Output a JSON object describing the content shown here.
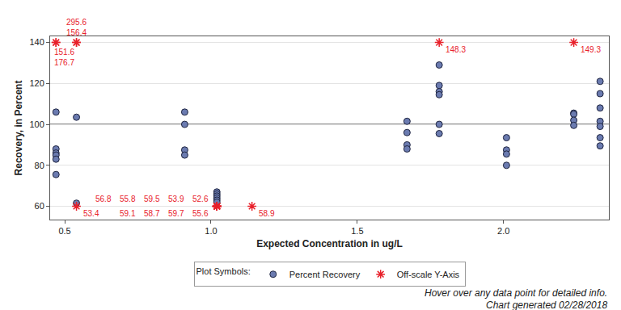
{
  "chart_data": {
    "type": "scatter",
    "x_label": "Expected Concentration in ug/L",
    "y_label": "Recovery, in Percent",
    "xlim": [
      0.45,
      2.36
    ],
    "xticks": [
      0.5,
      {
        "value": 1,
        "label": "1.0"
      },
      1.5,
      {
        "value": 2,
        "label": "2.0"
      }
    ],
    "ylim": [
      53.5,
      143
    ],
    "yticks": [
      60,
      80,
      100,
      120,
      140
    ],
    "grid": true,
    "reference_line": 100,
    "legend": "bottom",
    "legend_title": "Plot Symbols:",
    "series": [
      {
        "name": "Percent Recovery",
        "color": "#6b7bb0",
        "marker": "circle",
        "x": [
          0.47,
          0.47,
          0.47,
          0.47,
          0.47,
          0.47,
          0.54,
          0.54,
          0.91,
          0.91,
          0.91,
          0.91,
          1.02,
          1.02,
          1.02,
          1.02,
          1.02,
          1.02,
          1.67,
          1.67,
          1.67,
          1.67,
          1.78,
          1.78,
          1.78,
          1.78,
          1.78,
          1.78,
          2.01,
          2.01,
          2.01,
          2.01,
          2.24,
          2.24,
          2.24,
          2.24,
          2.33,
          2.33,
          2.33,
          2.33,
          2.33,
          2.33,
          2.33
        ],
        "values": [
          106,
          88,
          86,
          85,
          83,
          75.5,
          103.5,
          61.5,
          106,
          100,
          87.5,
          85,
          67,
          66,
          65,
          64,
          63,
          62,
          101.5,
          96,
          90,
          88,
          129,
          119,
          116,
          114.5,
          100,
          95.5,
          93.5,
          87.5,
          85.5,
          80,
          105.5,
          105,
          102,
          99.5,
          121,
          115,
          108,
          101.5,
          99,
          93.5,
          89.5
        ]
      },
      {
        "name": "Off-scale Y-Axis",
        "color": "#e8202a",
        "marker": "asterisk",
        "x": [
          0.47,
          0.47,
          0.54,
          0.54,
          0.54,
          1.02,
          1.02,
          1.02,
          1.02,
          1.02,
          1.02,
          1.02,
          1.02,
          1.02,
          1.14,
          1.78,
          2.24
        ],
        "values": [
          140,
          140,
          140,
          140,
          60,
          60,
          60,
          60,
          60,
          60,
          60,
          60,
          60,
          60,
          60,
          140,
          140
        ]
      }
    ],
    "annotations": [
      {
        "x": 0.47,
        "y": 140,
        "text": "151.6"
      },
      {
        "x": 0.47,
        "y": 140,
        "text": "176.7"
      },
      {
        "x": 0.54,
        "y": 140,
        "text": "156.4"
      },
      {
        "x": 0.54,
        "y": 140,
        "text": "295.6"
      },
      {
        "x": 0.54,
        "y": 60,
        "text": "53.4"
      },
      {
        "x": 1.02,
        "y": 60,
        "text": "52.6"
      },
      {
        "x": 1.02,
        "y": 60,
        "text": "55.6"
      },
      {
        "x": 1.02,
        "y": 60,
        "text": "53.9"
      },
      {
        "x": 1.02,
        "y": 60,
        "text": "59.7"
      },
      {
        "x": 1.02,
        "y": 60,
        "text": "59.5"
      },
      {
        "x": 1.02,
        "y": 60,
        "text": "58.7"
      },
      {
        "x": 1.02,
        "y": 60,
        "text": "55.8"
      },
      {
        "x": 1.02,
        "y": 60,
        "text": "59.1"
      },
      {
        "x": 1.02,
        "y": 60,
        "text": "56.8"
      },
      {
        "x": 1.14,
        "y": 60,
        "text": "58.9"
      },
      {
        "x": 1.78,
        "y": 140,
        "text": "148.3"
      },
      {
        "x": 2.24,
        "y": 140,
        "text": "149.3"
      }
    ],
    "footnotes": [
      "Hover over any data point for detailed info.",
      "Chart generated 02/28/2018"
    ]
  }
}
